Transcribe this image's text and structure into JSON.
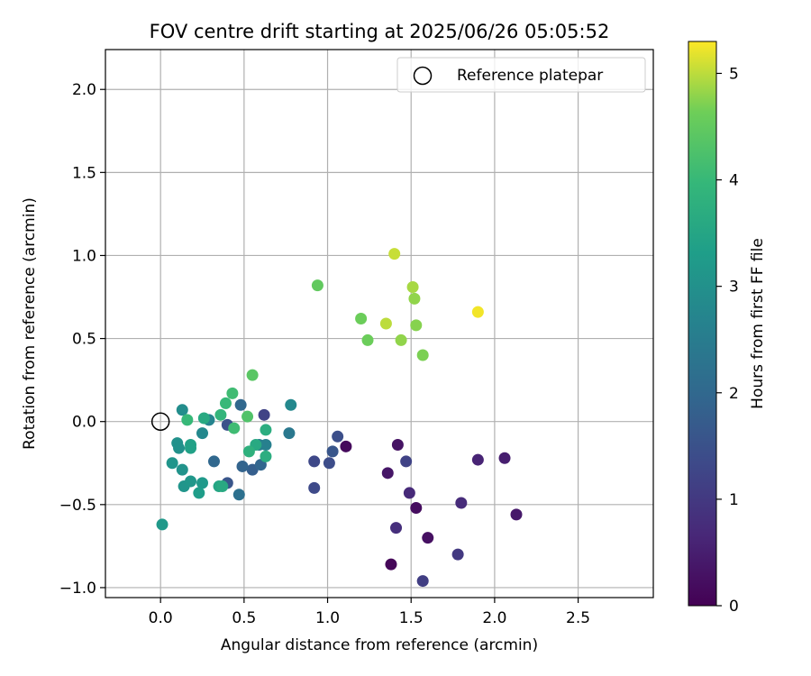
{
  "chart_data": {
    "type": "scatter",
    "title": "FOV centre drift starting at 2025/06/26 05:05:52",
    "xlabel": "Angular distance from reference (arcmin)",
    "ylabel": "Rotation from reference (arcmin)",
    "xlim": [
      -0.33,
      2.95
    ],
    "ylim": [
      -1.06,
      2.24
    ],
    "xticks": [
      0.0,
      0.5,
      1.0,
      1.5,
      2.0,
      2.5
    ],
    "xtick_labels": [
      "0.0",
      "0.5",
      "1.0",
      "1.5",
      "2.0",
      "2.5"
    ],
    "yticks": [
      -1.0,
      -0.5,
      0.0,
      0.5,
      1.0,
      1.5,
      2.0
    ],
    "ytick_labels": [
      "−1.0",
      "−0.5",
      "0.0",
      "0.5",
      "1.0",
      "1.5",
      "2.0"
    ],
    "grid": true,
    "legend": {
      "position": "top-right",
      "entries": [
        "Reference platepar"
      ]
    },
    "reference_point": {
      "x": 0.0,
      "y": 0.0
    },
    "colorbar": {
      "label": "Hours from first FF file",
      "colormap": "viridis",
      "range": [
        0,
        5.3
      ],
      "ticks": [
        0,
        1,
        2,
        3,
        4,
        5
      ],
      "tick_labels": [
        "0",
        "1",
        "2",
        "3",
        "4",
        "5"
      ]
    },
    "points": [
      {
        "x": 1.38,
        "y": -0.86,
        "hours": 0.1
      },
      {
        "x": 1.11,
        "y": -0.15,
        "hours": 0.15
      },
      {
        "x": 1.53,
        "y": -0.52,
        "hours": 0.2
      },
      {
        "x": 1.6,
        "y": -0.7,
        "hours": 0.25
      },
      {
        "x": 1.42,
        "y": -0.14,
        "hours": 0.3
      },
      {
        "x": 1.36,
        "y": -0.31,
        "hours": 0.35
      },
      {
        "x": 2.13,
        "y": -0.56,
        "hours": 0.4
      },
      {
        "x": 2.06,
        "y": -0.22,
        "hours": 0.5
      },
      {
        "x": 1.9,
        "y": -0.23,
        "hours": 0.6
      },
      {
        "x": 1.49,
        "y": -0.43,
        "hours": 0.7
      },
      {
        "x": 1.8,
        "y": -0.49,
        "hours": 0.75
      },
      {
        "x": 1.41,
        "y": -0.64,
        "hours": 0.8
      },
      {
        "x": 1.78,
        "y": -0.8,
        "hours": 1.0
      },
      {
        "x": 1.57,
        "y": -0.96,
        "hours": 1.1
      },
      {
        "x": 1.47,
        "y": -0.24,
        "hours": 1.2
      },
      {
        "x": 0.62,
        "y": 0.04,
        "hours": 1.2
      },
      {
        "x": 0.92,
        "y": -0.24,
        "hours": 1.3
      },
      {
        "x": 0.92,
        "y": -0.4,
        "hours": 1.35
      },
      {
        "x": 1.01,
        "y": -0.25,
        "hours": 1.4
      },
      {
        "x": 1.06,
        "y": -0.09,
        "hours": 1.45
      },
      {
        "x": 1.03,
        "y": -0.18,
        "hours": 1.6
      },
      {
        "x": 0.4,
        "y": -0.02,
        "hours": 1.5
      },
      {
        "x": 0.4,
        "y": -0.37,
        "hours": 1.6
      },
      {
        "x": 0.55,
        "y": -0.29,
        "hours": 1.8
      },
      {
        "x": 0.49,
        "y": -0.27,
        "hours": 1.9
      },
      {
        "x": 0.6,
        "y": -0.26,
        "hours": 1.95
      },
      {
        "x": 0.32,
        "y": -0.24,
        "hours": 2.0
      },
      {
        "x": 0.48,
        "y": 0.1,
        "hours": 2.0
      },
      {
        "x": 0.47,
        "y": -0.44,
        "hours": 2.2
      },
      {
        "x": 0.77,
        "y": -0.07,
        "hours": 2.4
      },
      {
        "x": 0.59,
        "y": -0.14,
        "hours": 2.5
      },
      {
        "x": 0.63,
        "y": -0.14,
        "hours": 2.6
      },
      {
        "x": 0.29,
        "y": 0.01,
        "hours": 2.7
      },
      {
        "x": 0.78,
        "y": 0.1,
        "hours": 2.8
      },
      {
        "x": 0.25,
        "y": -0.07,
        "hours": 2.8
      },
      {
        "x": 0.13,
        "y": 0.07,
        "hours": 2.9
      },
      {
        "x": 0.1,
        "y": -0.13,
        "hours": 3.0
      },
      {
        "x": 0.11,
        "y": -0.16,
        "hours": 3.0
      },
      {
        "x": 0.13,
        "y": -0.29,
        "hours": 3.05
      },
      {
        "x": 0.14,
        "y": -0.39,
        "hours": 3.1
      },
      {
        "x": 0.18,
        "y": -0.36,
        "hours": 3.15
      },
      {
        "x": 0.07,
        "y": -0.25,
        "hours": 3.1
      },
      {
        "x": 0.25,
        "y": -0.37,
        "hours": 3.2
      },
      {
        "x": 0.23,
        "y": -0.43,
        "hours": 3.3
      },
      {
        "x": 0.01,
        "y": -0.62,
        "hours": 3.2
      },
      {
        "x": 0.18,
        "y": -0.14,
        "hours": 3.4
      },
      {
        "x": 0.18,
        "y": -0.16,
        "hours": 3.4
      },
      {
        "x": 0.35,
        "y": -0.39,
        "hours": 3.5
      },
      {
        "x": 0.37,
        "y": -0.39,
        "hours": 3.6
      },
      {
        "x": 0.26,
        "y": 0.02,
        "hours": 3.6
      },
      {
        "x": 0.57,
        "y": -0.14,
        "hours": 3.6
      },
      {
        "x": 0.63,
        "y": -0.05,
        "hours": 3.7
      },
      {
        "x": 0.63,
        "y": -0.21,
        "hours": 3.7
      },
      {
        "x": 0.53,
        "y": -0.18,
        "hours": 3.8
      },
      {
        "x": 0.36,
        "y": 0.04,
        "hours": 3.9
      },
      {
        "x": 0.16,
        "y": 0.01,
        "hours": 4.0
      },
      {
        "x": 0.39,
        "y": 0.11,
        "hours": 4.0
      },
      {
        "x": 0.44,
        "y": -0.04,
        "hours": 4.1
      },
      {
        "x": 0.43,
        "y": 0.17,
        "hours": 4.1
      },
      {
        "x": 0.52,
        "y": 0.03,
        "hours": 4.3
      },
      {
        "x": 0.55,
        "y": 0.28,
        "hours": 4.4
      },
      {
        "x": 0.94,
        "y": 0.82,
        "hours": 4.5
      },
      {
        "x": 1.2,
        "y": 0.62,
        "hours": 4.6
      },
      {
        "x": 1.24,
        "y": 0.49,
        "hours": 4.6
      },
      {
        "x": 1.57,
        "y": 0.4,
        "hours": 4.7
      },
      {
        "x": 1.53,
        "y": 0.58,
        "hours": 4.75
      },
      {
        "x": 1.44,
        "y": 0.49,
        "hours": 4.8
      },
      {
        "x": 1.52,
        "y": 0.74,
        "hours": 4.8
      },
      {
        "x": 1.51,
        "y": 0.81,
        "hours": 4.9
      },
      {
        "x": 1.35,
        "y": 0.59,
        "hours": 5.0
      },
      {
        "x": 1.4,
        "y": 1.01,
        "hours": 5.05
      },
      {
        "x": 1.9,
        "y": 0.66,
        "hours": 5.25
      }
    ]
  }
}
